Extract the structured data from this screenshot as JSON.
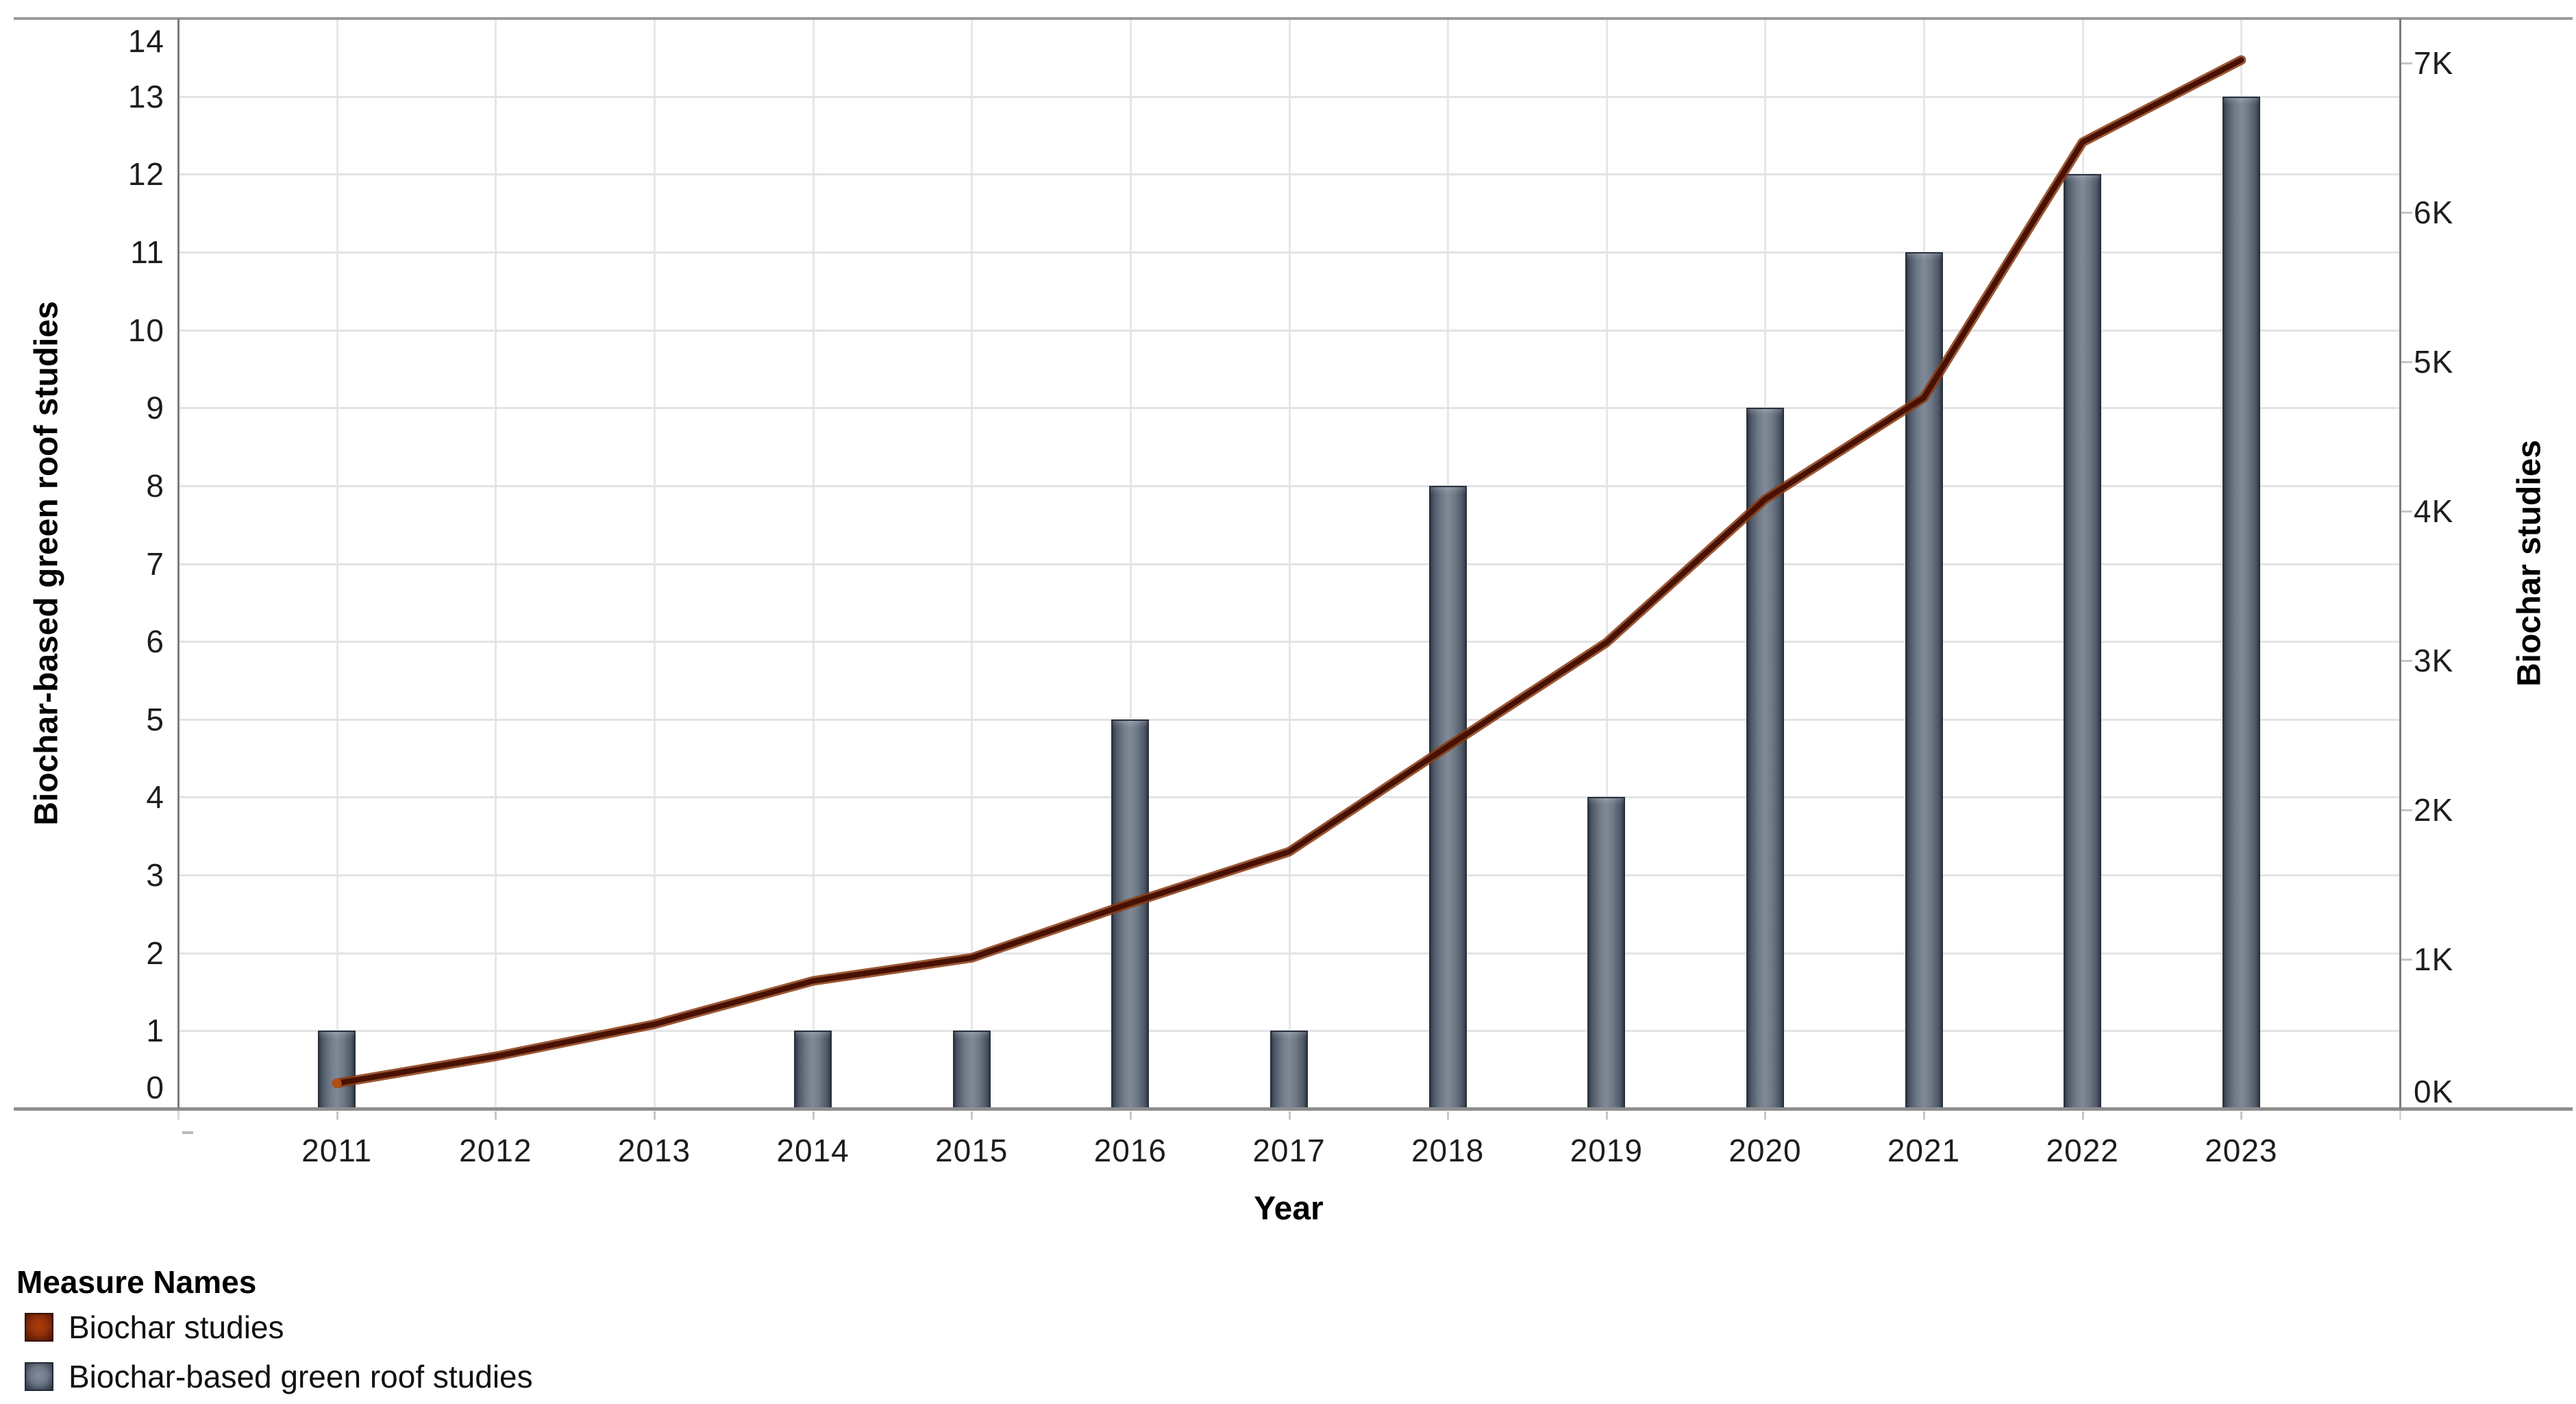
{
  "chart_data": {
    "type": "combo",
    "title": "",
    "xlabel": "Year",
    "ylabel_left": "Biochar-based green roof studies",
    "ylabel_right": "Biochar studies",
    "categories": [
      "2011",
      "2012",
      "2013",
      "2014",
      "2015",
      "2016",
      "2017",
      "2018",
      "2019",
      "2020",
      "2021",
      "2022",
      "2023"
    ],
    "series": [
      {
        "name": "Biochar studies",
        "type": "line",
        "axis": "right",
        "color": "#5a1804",
        "values": [
          170,
          350,
          565,
          855,
          1010,
          1375,
          1720,
          2425,
          3120,
          4080,
          4760,
          6470,
          7020
        ]
      },
      {
        "name": "Biochar-based green roof studies",
        "type": "bar",
        "axis": "left",
        "color": "#6f7987",
        "values": [
          1,
          0,
          0,
          1,
          1,
          5,
          1,
          8,
          4,
          9,
          11,
          12,
          13
        ]
      }
    ],
    "axes": {
      "left": {
        "tick_labels": [
          "0",
          "1",
          "2",
          "3",
          "4",
          "5",
          "6",
          "7",
          "8",
          "9",
          "10",
          "11",
          "12",
          "13",
          "14"
        ],
        "range": [
          0,
          14
        ]
      },
      "right": {
        "tick_labels": [
          "0K",
          "1K",
          "2K",
          "3K",
          "4K",
          "5K",
          "6K",
          "7K"
        ],
        "range": [
          0,
          7300
        ]
      }
    },
    "grid": true,
    "legend_position": "bottom-left"
  },
  "legend": {
    "title": "Measure Names",
    "items": [
      {
        "label": "Biochar studies",
        "swatch_color": "#9c3407",
        "swatch_kind": "line-series-swatch"
      },
      {
        "label": "Biochar-based green roof studies",
        "swatch_color": "#6f7987",
        "swatch_kind": "bar-series-swatch"
      }
    ]
  },
  "colors": {
    "bar_fill": "#6f7987",
    "bar_border": "#28303c",
    "line_core": "#491103",
    "line_edge": "#8a3a10",
    "gridline": "#e3e3e6",
    "pane_border": "#9b9b9b",
    "axis_line": "#7c7c7c"
  }
}
